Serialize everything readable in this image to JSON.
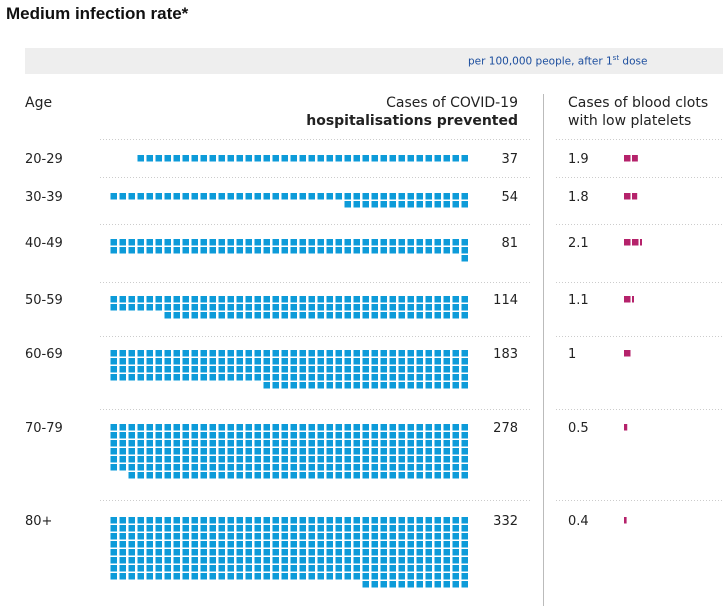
{
  "title": "Medium infection rate*",
  "banner": {
    "text": "per 100,000 people, after 1",
    "sup": "st",
    "suffix": " dose"
  },
  "headers": {
    "age": "Age",
    "prevented_line1": "Cases of COVID-19",
    "prevented_line2": "hospitalisations prevented",
    "clots_line1": "Cases of blood clots",
    "clots_line2": "with low platelets"
  },
  "colors": {
    "prevented": "#0d9bd9",
    "clots": "#b5226b",
    "divider": "#bbbbbb"
  },
  "chart_data": {
    "type": "waffle",
    "title": "Medium infection rate*",
    "unit_note": "per 100,000 people, after 1st dose",
    "categories": [
      "20-29",
      "30-39",
      "40-49",
      "50-59",
      "60-69",
      "70-79",
      "80+"
    ],
    "series": [
      {
        "name": "Cases of COVID-19 hospitalisations prevented",
        "values": [
          37,
          54,
          81,
          114,
          183,
          278,
          332
        ]
      },
      {
        "name": "Cases of blood clots with low platelets",
        "values": [
          1.9,
          1.8,
          2.1,
          1.1,
          1,
          0.5,
          0.4
        ]
      }
    ]
  }
}
